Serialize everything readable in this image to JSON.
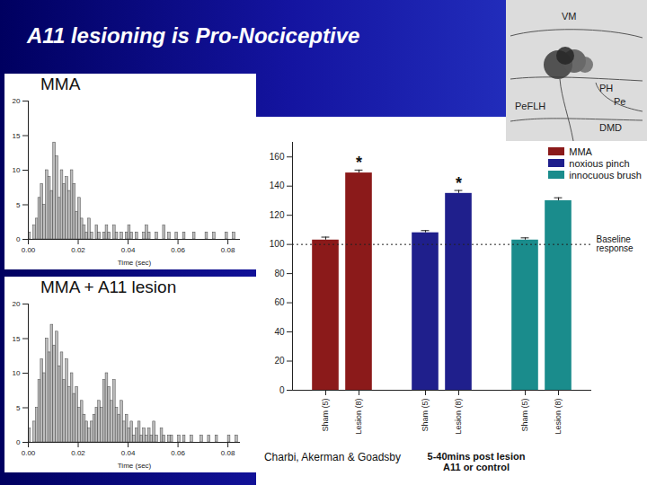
{
  "slide": {
    "title": "A11 lesioning is Pro-Nociceptive",
    "citation": "Charbi, Akerman & Goadsby"
  },
  "inset": {
    "labels": [
      "VM",
      "PH",
      "Pe",
      "PeFLH",
      "DMD"
    ]
  },
  "chart_data": [
    {
      "type": "histogram",
      "title": "MMA",
      "x_label": "Time (sec)",
      "color": "#bdbdbd",
      "bins": [
        0,
        0.001,
        0.002,
        0.003,
        0.004,
        0.005,
        0.006,
        0.007,
        0.008,
        0.009,
        0.01,
        0.011,
        0.012,
        0.013,
        0.014,
        0.015,
        0.016,
        0.017,
        0.018,
        0.019,
        0.02,
        0.021,
        0.022,
        0.023,
        0.024,
        0.025,
        0.026,
        0.027,
        0.028,
        0.029,
        0.03,
        0.031,
        0.032,
        0.033,
        0.034,
        0.035,
        0.036,
        0.037,
        0.038,
        0.039,
        0.04,
        0.041,
        0.042,
        0.043,
        0.044,
        0.045,
        0.046,
        0.047,
        0.048,
        0.049,
        0.05,
        0.051,
        0.052,
        0.053,
        0.054,
        0.055,
        0.056,
        0.057,
        0.058,
        0.059,
        0.06,
        0.061,
        0.062,
        0.063,
        0.064,
        0.065,
        0.066,
        0.067,
        0.068,
        0.069,
        0.07,
        0.071,
        0.072,
        0.073,
        0.074,
        0.075,
        0.076,
        0.077,
        0.078,
        0.079,
        0.08,
        0.081,
        0.082,
        0.083,
        0.084,
        0.085
      ],
      "counts": [
        1,
        0,
        2,
        3,
        6,
        8,
        5,
        10,
        9,
        7,
        14,
        12,
        6,
        10,
        8,
        9,
        7,
        10,
        8,
        4,
        6,
        3,
        2,
        1,
        3,
        1,
        0,
        2,
        1,
        0,
        1,
        2,
        1,
        0,
        2,
        1,
        0,
        1,
        0,
        1,
        2,
        1,
        0,
        1,
        0,
        0,
        1,
        2,
        1,
        0,
        0,
        1,
        0,
        0,
        2,
        0,
        1,
        0,
        0,
        1,
        0,
        0,
        1,
        0,
        0,
        0,
        1,
        0,
        0,
        0,
        0,
        1,
        0,
        0,
        1,
        0,
        0,
        0,
        0,
        1,
        0,
        0,
        1,
        0,
        0
      ],
      "xlim": [
        0,
        0.085
      ],
      "xticks": [
        {
          "value": 0,
          "label": "0.00"
        },
        {
          "value": 0.02,
          "label": "0.02"
        },
        {
          "value": 0.04,
          "label": "0.04"
        },
        {
          "value": 0.06,
          "label": "0.06"
        },
        {
          "value": 0.08,
          "label": "0.08"
        }
      ],
      "ylim": [
        0,
        20
      ],
      "yticks": [
        0,
        5,
        10,
        15,
        20
      ]
    },
    {
      "type": "histogram",
      "title": "MMA + A11 lesion",
      "x_label": "Time (sec)",
      "color": "#bdbdbd",
      "bins": [
        0,
        0.001,
        0.002,
        0.003,
        0.004,
        0.005,
        0.006,
        0.007,
        0.008,
        0.009,
        0.01,
        0.011,
        0.012,
        0.013,
        0.014,
        0.015,
        0.016,
        0.017,
        0.018,
        0.019,
        0.02,
        0.021,
        0.022,
        0.023,
        0.024,
        0.025,
        0.026,
        0.027,
        0.028,
        0.029,
        0.03,
        0.031,
        0.032,
        0.033,
        0.034,
        0.035,
        0.036,
        0.037,
        0.038,
        0.039,
        0.04,
        0.041,
        0.042,
        0.043,
        0.044,
        0.045,
        0.046,
        0.047,
        0.048,
        0.049,
        0.05,
        0.051,
        0.052,
        0.053,
        0.054,
        0.055,
        0.056,
        0.057,
        0.058,
        0.059,
        0.06,
        0.061,
        0.062,
        0.063,
        0.064,
        0.065,
        0.066,
        0.067,
        0.068,
        0.069,
        0.07,
        0.071,
        0.072,
        0.073,
        0.074,
        0.075,
        0.076,
        0.077,
        0.078,
        0.079,
        0.08,
        0.081,
        0.082,
        0.083,
        0.084,
        0.085
      ],
      "counts": [
        2,
        0,
        3,
        5,
        9,
        12,
        10,
        15,
        13,
        17,
        14,
        16,
        11,
        13,
        9,
        12,
        8,
        10,
        7,
        8,
        5,
        6,
        4,
        3,
        2,
        3,
        4,
        5,
        6,
        5,
        9,
        10,
        8,
        6,
        9,
        5,
        4,
        6,
        3,
        4,
        2,
        3,
        1,
        2,
        3,
        1,
        2,
        1,
        2,
        1,
        3,
        1,
        0,
        2,
        1,
        0,
        1,
        1,
        0,
        0,
        1,
        0,
        1,
        0,
        0,
        1,
        0,
        0,
        0,
        1,
        0,
        0,
        1,
        0,
        0,
        1,
        0,
        0,
        0,
        0,
        1,
        0,
        0,
        1,
        0
      ],
      "xlim": [
        0,
        0.085
      ],
      "xticks": [
        {
          "value": 0,
          "label": "0.00"
        },
        {
          "value": 0.02,
          "label": "0.02"
        },
        {
          "value": 0.04,
          "label": "0.04"
        },
        {
          "value": 0.06,
          "label": "0.06"
        },
        {
          "value": 0.08,
          "label": "0.08"
        }
      ],
      "ylim": [
        0,
        20
      ],
      "yticks": [
        0,
        5,
        10,
        15,
        20
      ]
    },
    {
      "type": "bar",
      "x_label": "5-40mins post lesion A11 or control",
      "categories": [
        "Sham (5)",
        "Lesion (8)"
      ],
      "series": [
        {
          "name": "MMA",
          "color": "#8b1a1a",
          "values": [
            103,
            149
          ],
          "errors": [
            2,
            2
          ]
        },
        {
          "name": "noxious pinch",
          "color": "#1f1f8c",
          "values": [
            108,
            135
          ],
          "errors": [
            1.5,
            2
          ]
        },
        {
          "name": "innocuous brush",
          "color": "#1a8c8c",
          "values": [
            103,
            130
          ],
          "errors": [
            1.5,
            2
          ]
        }
      ],
      "ylim": [
        0,
        170
      ],
      "yticks": [
        0,
        20,
        40,
        60,
        80,
        100,
        120,
        140,
        160
      ],
      "legend": "top-right",
      "reference_line": {
        "value": 100,
        "label": "Baseline response"
      },
      "annotations": [
        {
          "series": "MMA",
          "category": "Lesion (8)",
          "text": "*"
        },
        {
          "series": "noxious pinch",
          "category": "Lesion (8)",
          "text": "*"
        }
      ]
    }
  ]
}
